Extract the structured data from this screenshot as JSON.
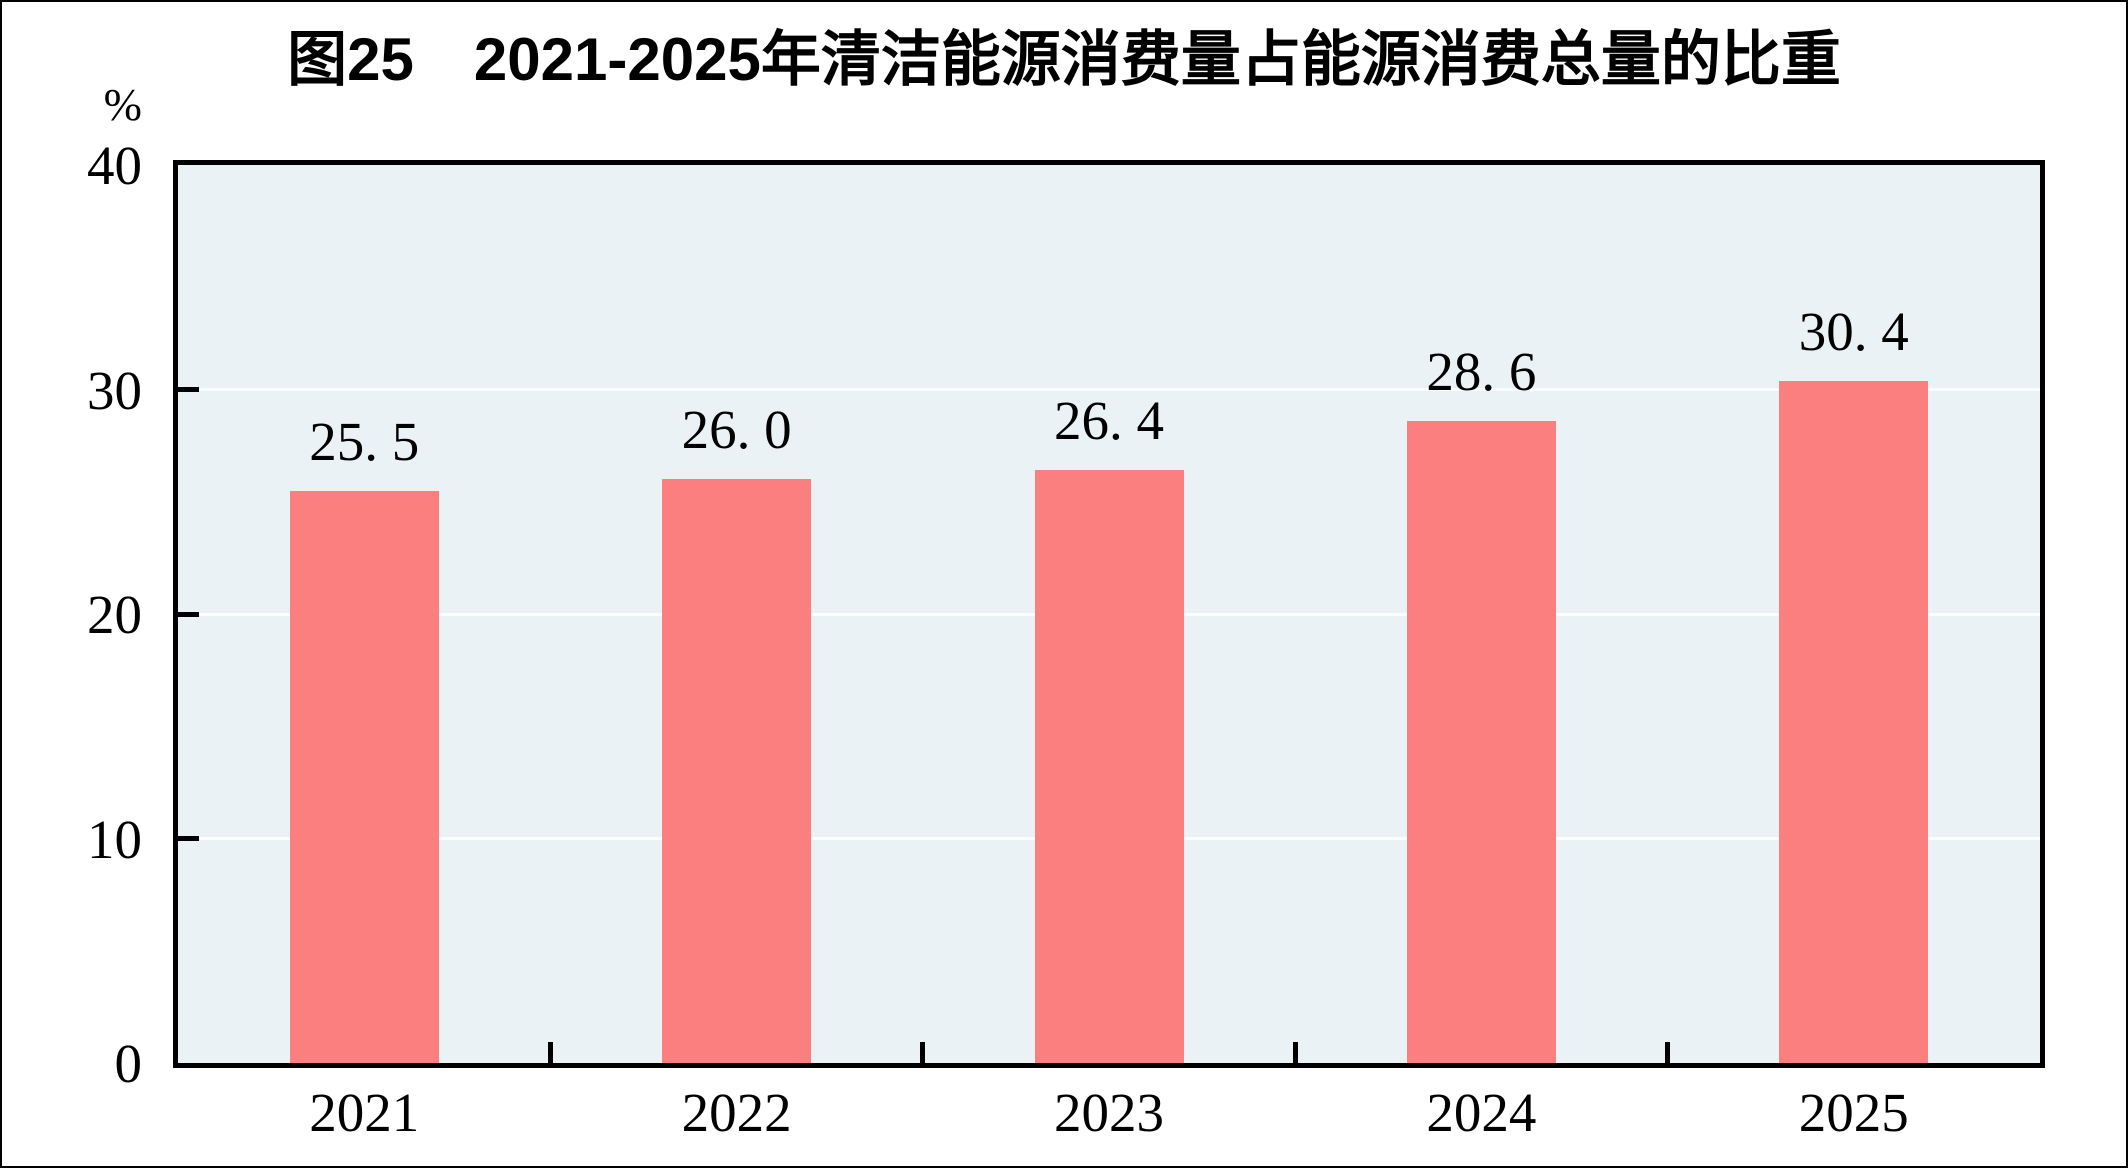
{
  "title": "图25　2021-2025年清洁能源消费量占能源消费总量的比重",
  "y_axis": {
    "unit_label": "%",
    "tick_labels": [
      "0",
      "10",
      "20",
      "30",
      "40"
    ]
  },
  "chart_data": {
    "type": "bar",
    "title": "图25　2021-2025年清洁能源消费量占能源消费总量的比重",
    "categories": [
      "2021",
      "2022",
      "2023",
      "2024",
      "2025"
    ],
    "values": [
      25.5,
      26.0,
      26.4,
      28.6,
      30.4
    ],
    "value_labels": [
      "25. 5",
      "26. 0",
      "26. 4",
      "28. 6",
      "30. 4"
    ],
    "xlabel": "",
    "ylabel": "%",
    "ylim": [
      0,
      40
    ],
    "y_ticks": [
      0,
      10,
      20,
      30,
      40
    ],
    "grid": true,
    "legend": false,
    "colors": {
      "bar": "#FC7F7F",
      "plot_background": "#EBF2F6",
      "gridline": "#FCFEFE",
      "axis_frame": "#000000",
      "text": "#000000"
    }
  }
}
